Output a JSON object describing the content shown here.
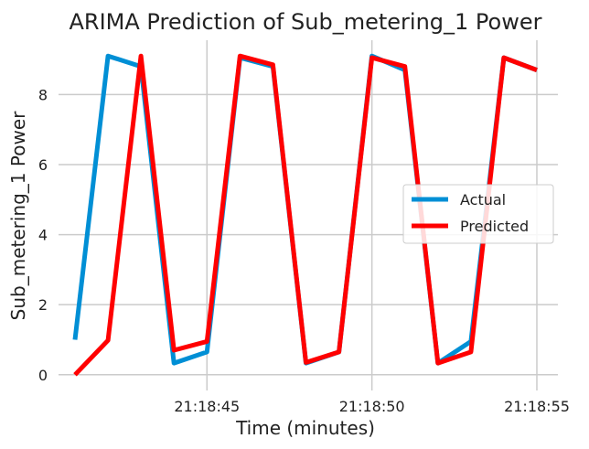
{
  "chart_data": {
    "type": "line",
    "title": "ARIMA Prediction of Sub_metering_1 Power",
    "xlabel": "Time (minutes)",
    "ylabel": "Sub_metering_1 Power",
    "x": [
      "21:18:41",
      "21:18:42",
      "21:18:43",
      "21:18:44",
      "21:18:45",
      "21:18:46",
      "21:18:47",
      "21:18:48",
      "21:18:49",
      "21:18:50",
      "21:18:51",
      "21:18:52",
      "21:18:53",
      "21:18:54",
      "21:18:55"
    ],
    "x_ticks": [
      "21:18:45",
      "21:18:50",
      "21:18:55"
    ],
    "y_ticks": [
      0,
      2,
      4,
      6,
      8
    ],
    "ylim": [
      -0.45,
      9.55
    ],
    "grid": true,
    "legend_position": "center-right",
    "series": [
      {
        "name": "Actual",
        "color": "#008fd5",
        "values": [
          1.0,
          9.1,
          8.8,
          0.33,
          0.65,
          9.05,
          8.8,
          0.33,
          0.65,
          9.1,
          8.7,
          0.33,
          0.95,
          9.05,
          8.7
        ]
      },
      {
        "name": "Predicted",
        "color": "#ff0000",
        "values": [
          0.0,
          0.98,
          9.1,
          0.7,
          0.95,
          9.1,
          8.85,
          0.35,
          0.65,
          9.05,
          8.8,
          0.33,
          0.65,
          9.05,
          8.7
        ]
      }
    ]
  }
}
